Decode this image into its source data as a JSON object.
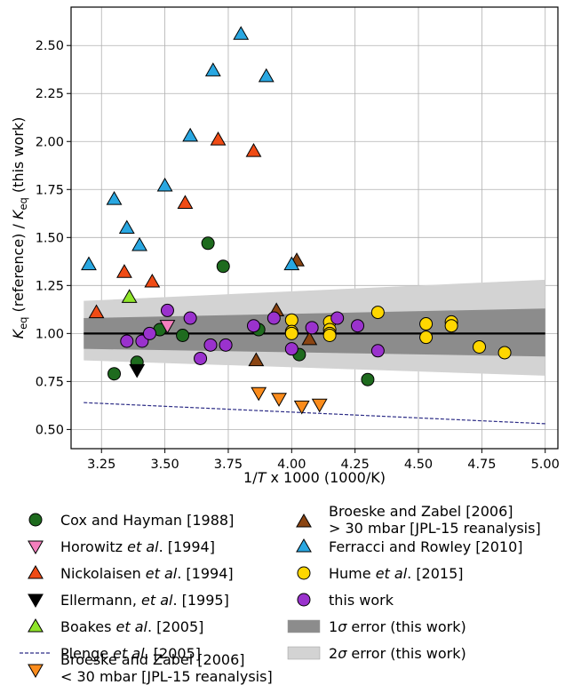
{
  "chart_data": {
    "type": "scatter",
    "xlabel_parts": [
      "1/",
      "T",
      " x 1000 (1000/K)"
    ],
    "ylabel_parts": [
      "K",
      "eq",
      " (reference) / ",
      "K",
      "eq",
      " (this work)"
    ],
    "xlim": [
      3.13,
      5.05
    ],
    "ylim": [
      0.4,
      2.7
    ],
    "xticks": [
      "3.25",
      "3.50",
      "3.75",
      "4.00",
      "4.25",
      "4.50",
      "4.75",
      "5.00"
    ],
    "yticks": [
      "0.50",
      "0.75",
      "1.00",
      "1.25",
      "1.50",
      "1.75",
      "2.00",
      "2.25",
      "2.50"
    ],
    "grid": true,
    "reference_line": {
      "y": 1.0,
      "x": [
        3.18,
        5.0
      ]
    },
    "bands": {
      "sigma1": {
        "x": [
          3.18,
          5.0
        ],
        "upper": [
          1.08,
          1.13
        ],
        "lower": [
          0.92,
          0.88
        ],
        "color": "#8c8c8c"
      },
      "sigma2": {
        "x": [
          3.18,
          5.0
        ],
        "upper": [
          1.17,
          1.28
        ],
        "lower": [
          0.86,
          0.78
        ],
        "color": "#d3d3d3"
      }
    },
    "series": [
      {
        "name_parts": [
          "Cox and Hayman [1988]"
        ],
        "marker": "circle",
        "color": "#1e6b1e",
        "x": [
          3.3,
          3.39,
          3.48,
          3.57,
          3.67,
          3.73,
          3.87,
          4.03,
          4.3
        ],
        "y": [
          0.79,
          0.85,
          1.02,
          0.99,
          1.47,
          1.35,
          1.02,
          0.89,
          0.76
        ]
      },
      {
        "name_parts": [
          "Horowitz ",
          "et al",
          ". [1994]"
        ],
        "marker": "triangle-down",
        "color": "#f47fbd",
        "x": [
          3.51
        ],
        "y": [
          1.04
        ]
      },
      {
        "name_parts": [
          "Nickolaisen ",
          "et al",
          ". [1994]"
        ],
        "marker": "triangle-up",
        "color": "#f04b15",
        "x": [
          3.23,
          3.34,
          3.45,
          3.58,
          3.71,
          3.85
        ],
        "y": [
          1.11,
          1.32,
          1.27,
          1.68,
          2.01,
          1.95
        ]
      },
      {
        "name_parts": [
          "Ellermann, ",
          "et al",
          ". [1995]"
        ],
        "marker": "triangle-down",
        "color": "#000000",
        "x": [
          3.39
        ],
        "y": [
          0.81
        ]
      },
      {
        "name_parts": [
          "Boakes ",
          "et al",
          ". [2005]"
        ],
        "marker": "triangle-up",
        "color": "#8fe52a",
        "x": [
          3.36
        ],
        "y": [
          1.19
        ]
      },
      {
        "name_parts": [
          "Plenge ",
          "et al",
          ". [2005]"
        ],
        "marker": "dashed-line",
        "color": "#2c2c86",
        "x": [
          3.18,
          5.0
        ],
        "y": [
          0.64,
          0.53
        ]
      },
      {
        "name_parts": [
          "Broeske and Zabel [2006]",
          "< 30 mbar [JPL-15 reanalysis]"
        ],
        "marker": "triangle-down",
        "color": "#fb8c1c",
        "x": [
          3.87,
          3.95,
          4.04,
          4.11
        ],
        "y": [
          0.69,
          0.66,
          0.62,
          0.63
        ]
      },
      {
        "name_parts": [
          "Broeske and Zabel [2006]",
          "> 30 mbar [JPL-15 reanalysis]"
        ],
        "marker": "triangle-up",
        "color": "#8b4513",
        "x": [
          3.86,
          3.94,
          4.02,
          4.07
        ],
        "y": [
          0.86,
          1.12,
          1.38,
          0.97
        ]
      },
      {
        "name_parts": [
          "Ferracci and Rowley [2010]"
        ],
        "marker": "triangle-up",
        "color": "#29a7e1",
        "x": [
          3.2,
          3.3,
          3.35,
          3.4,
          3.5,
          3.6,
          3.69,
          3.8,
          3.9,
          4.0
        ],
        "y": [
          1.36,
          1.7,
          1.55,
          1.46,
          1.77,
          2.03,
          2.37,
          2.56,
          2.34,
          1.36
        ]
      },
      {
        "name_parts": [
          "Hume ",
          "et al",
          ". [2015]"
        ],
        "marker": "circle",
        "color": "#ffd700",
        "x": [
          4.0,
          4.0,
          4.0,
          4.15,
          4.15,
          4.15,
          4.15,
          4.34,
          4.53,
          4.53,
          4.63,
          4.63,
          4.74,
          4.84
        ],
        "y": [
          1.07,
          1.01,
          1.0,
          1.06,
          1.02,
          1.0,
          0.99,
          1.11,
          1.05,
          0.98,
          1.06,
          1.04,
          0.93,
          0.9
        ]
      },
      {
        "name_parts": [
          "this work"
        ],
        "marker": "circle",
        "color": "#9a32cd",
        "x": [
          3.35,
          3.41,
          3.44,
          3.51,
          3.6,
          3.64,
          3.68,
          3.74,
          3.85,
          3.93,
          4.0,
          4.08,
          4.18,
          4.26,
          4.34
        ],
        "y": [
          0.96,
          0.96,
          1.0,
          1.12,
          1.08,
          0.87,
          0.94,
          0.94,
          1.04,
          1.08,
          0.92,
          1.03,
          1.08,
          1.04,
          0.91
        ]
      }
    ],
    "band_legend": [
      {
        "name_parts": [
          "1",
          "σ",
          " error (this work)"
        ],
        "color": "#8c8c8c"
      },
      {
        "name_parts": [
          "2",
          "σ",
          " error (this work)"
        ],
        "color": "#d3d3d3"
      }
    ]
  }
}
